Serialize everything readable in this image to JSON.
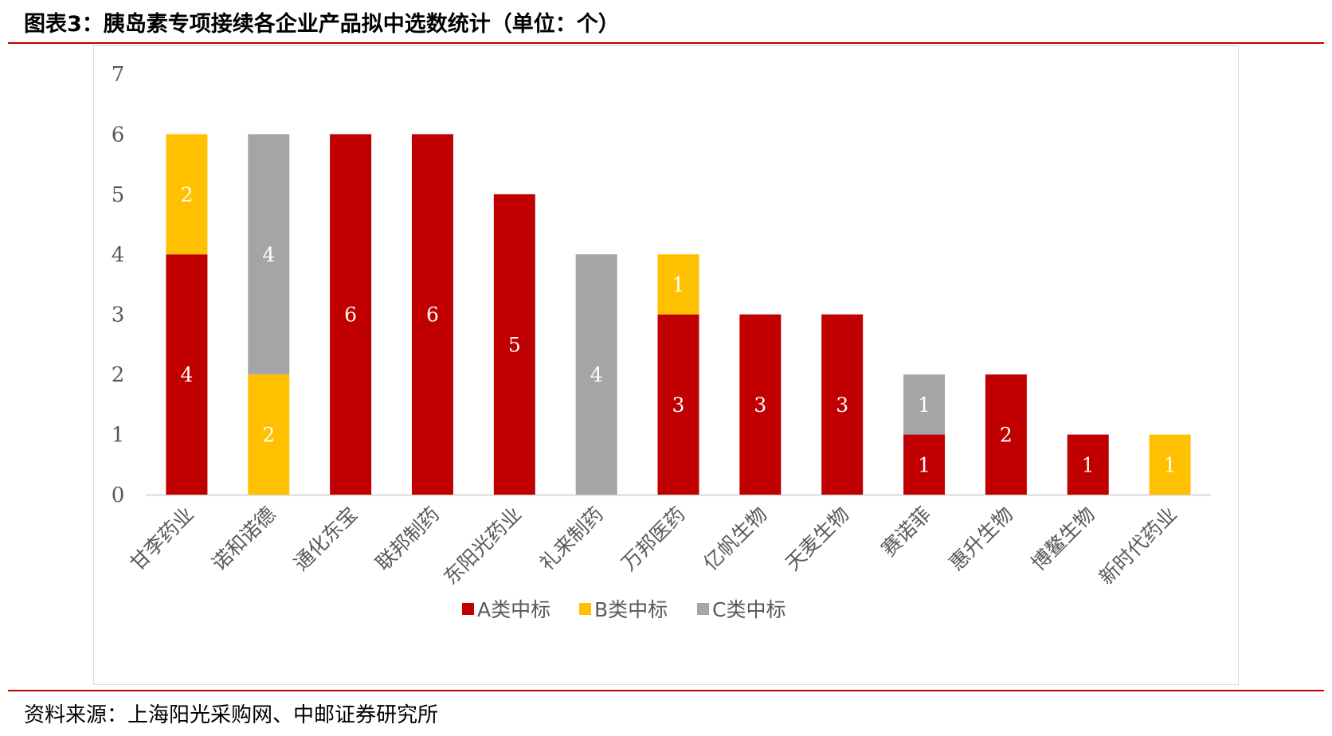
{
  "header": {
    "title": "图表3：胰岛素专项接续各企业产品拟中选数统计（单位：个）"
  },
  "footer": {
    "source": "资料来源：上海阳光采购网、中邮证券研究所"
  },
  "colors": {
    "series_a": "#c00000",
    "series_b": "#ffc000",
    "series_c": "#a5a5a5",
    "rule": "#c00000",
    "axis": "#d9d9d9",
    "text": "#595959"
  },
  "chart_data": {
    "type": "bar",
    "stacked": true,
    "title": "",
    "xlabel": "",
    "ylabel": "",
    "ylim": [
      0,
      7
    ],
    "yticks": [
      0,
      1,
      2,
      3,
      4,
      5,
      6,
      7
    ],
    "grid": false,
    "legend_position": "bottom",
    "categories": [
      "甘李药业",
      "诺和诺德",
      "通化东宝",
      "联邦制药",
      "东阳光药业",
      "礼来制药",
      "万邦医药",
      "亿帆生物",
      "天麦生物",
      "赛诺菲",
      "惠升生物",
      "博鳌生物",
      "新时代药业"
    ],
    "series": [
      {
        "name": "A类中标",
        "color": "#c00000",
        "values": [
          4,
          0,
          6,
          6,
          5,
          0,
          3,
          3,
          3,
          1,
          2,
          1,
          0
        ]
      },
      {
        "name": "B类中标",
        "color": "#ffc000",
        "values": [
          2,
          2,
          0,
          0,
          0,
          0,
          1,
          0,
          0,
          0,
          0,
          0,
          1
        ]
      },
      {
        "name": "C类中标",
        "color": "#a5a5a5",
        "values": [
          0,
          4,
          0,
          0,
          0,
          4,
          0,
          0,
          0,
          1,
          0,
          0,
          0
        ]
      }
    ]
  }
}
